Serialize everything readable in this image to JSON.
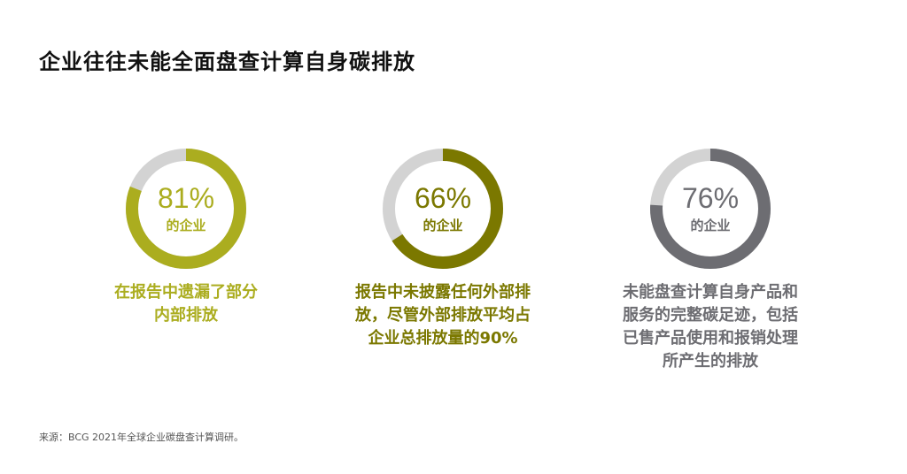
{
  "title": "企业往往未能全面盘查计算自身碳排放",
  "source": "来源：BCG 2021年全球企业碳盘查计算调研。",
  "colors": {
    "track": "#d3d3d3",
    "green": "#abad1f",
    "olive": "#7b7800",
    "gray": "#6d6d72"
  },
  "chart_data": {
    "type": "pie",
    "subtype": "donut",
    "charts": [
      {
        "value": 81,
        "label": "81%",
        "sublabel": "的企业",
        "description_lines": [
          "在报告中遗漏了部分",
          "内部排放"
        ],
        "color": "#abad1f",
        "text_color": "#abad1f"
      },
      {
        "value": 66,
        "label": "66%",
        "sublabel": "的企业",
        "description_lines": [
          "报告中未披露任何外部排",
          "放，尽管外部排放平均占",
          "企业总排放量的90%"
        ],
        "color": "#7b7800",
        "text_color": "#7b7800"
      },
      {
        "value": 76,
        "label": "76%",
        "sublabel": "的企业",
        "description_lines": [
          "未能盘查计算自身产品和",
          "服务的完整碳足迹，包括",
          "已售产品使用和报销处理",
          "所产生的排放"
        ],
        "color": "#6d6d72",
        "text_color": "#6d6d72"
      }
    ]
  }
}
